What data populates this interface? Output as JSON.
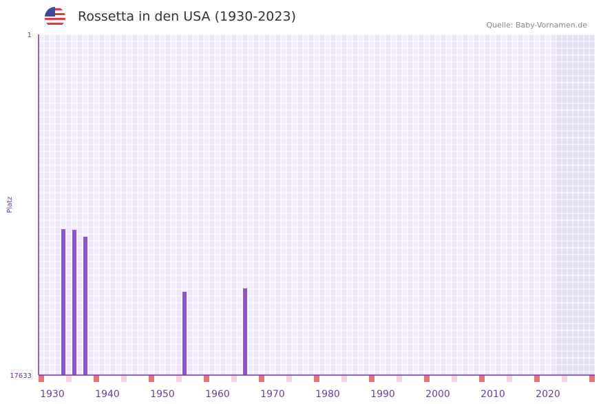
{
  "header": {
    "title": "Rossetta in den USA (1930-2023)",
    "source": "Quelle: Baby-Vornamen.de",
    "flag_icon": "us-flag-icon"
  },
  "chart_data": {
    "type": "bar",
    "title": "Rossetta in den USA (1930-2023)",
    "xlabel": "",
    "ylabel": "Platz",
    "x_range": [
      1928,
      2028
    ],
    "ylim": [
      1,
      17633
    ],
    "y_inverted": true,
    "yticks": [
      "1",
      "17633"
    ],
    "xticks": [
      "1930",
      "1940",
      "1950",
      "1960",
      "1970",
      "1980",
      "1990",
      "2000",
      "2010",
      "2020"
    ],
    "x": [
      1932,
      1934,
      1936,
      1954,
      1965
    ],
    "values": [
      10080,
      10115,
      10470,
      13320,
      13145
    ],
    "colors": {
      "bar": "#8e56c6",
      "axis": "#6a3fa0",
      "marker": "#e8707a",
      "marker_light": "#f5d5dd",
      "grid_a": "#f3eefc",
      "grid_b": "#ece6f8",
      "future": "#e4dff0"
    }
  }
}
